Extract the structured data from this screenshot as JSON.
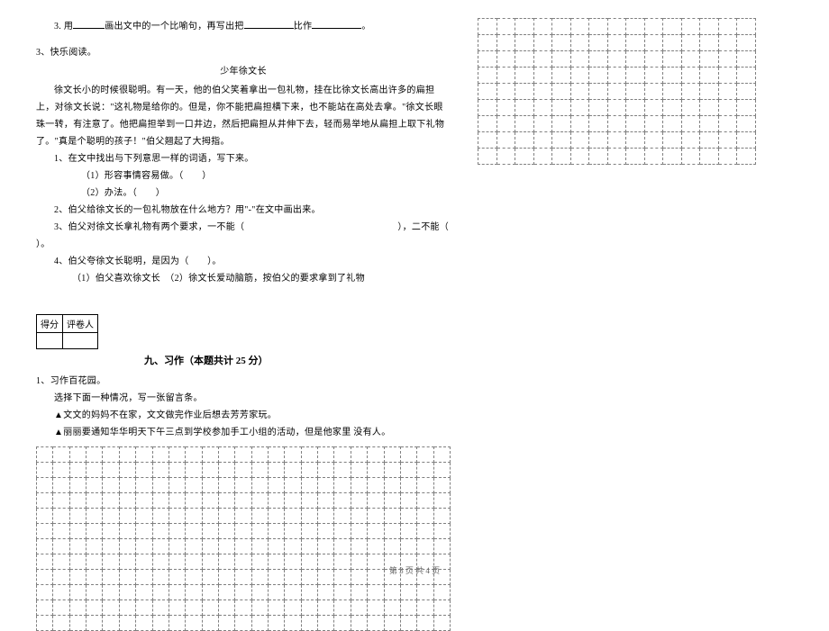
{
  "q3_sub3": {
    "prefix": "3. 用",
    "mid1": "画出文中的一个比喻句，再写出把",
    "mid2": "比作",
    "end": "。"
  },
  "q3_main": "3、快乐阅读。",
  "story": {
    "title": "少年徐文长",
    "p1": "徐文长小的时候很聪明。有一天，他的伯父笑着拿出一包礼物，挂在比徐文长高出许多的扁担上，对徐文长说：\"这礼物是给你的。但是，你不能把扁担横下来，也不能站在高处去拿。\"徐文长眼珠一转，有注意了。他把扁担举到一口井边，然后把扁担从井伸下去，轻而易举地从扁担上取下礼物了。\"真是个聪明的孩子！\"伯父翘起了大拇指。",
    "s1": "1、在文中找出与下列意思一样的词语，写下来。",
    "s1_1": "（1）形容事情容易做。（　　）",
    "s1_2": "（2）办法。（　　）",
    "s2": "2、伯父给徐文长的一包礼物放在什么地方？用\"-\"在文中画出来。",
    "s3a": "3、伯父对徐文长拿礼物有两个要求，一不能（",
    "s3b": "），二不能（",
    "s3c": "）。",
    "s4": "4、伯父夸徐文长聪明，是因为（　　）。",
    "s4_1": "（1）伯父喜欢徐文长　（2）徐文长爱动脑筋，按伯父的要求拿到了礼物"
  },
  "score_labels": {
    "c1": "得分",
    "c2": "评卷人"
  },
  "section9_title": "九、习作（本题共计 25 分）",
  "composition": {
    "l1": "1、习作百花园。",
    "l2": "选择下面一种情况，写一张留言条。",
    "l3": "▲文文的妈妈不在家，文文做完作业后想去芳芳家玩。",
    "l4": "▲丽丽要通知华华明天下午三点到学校参加手工小组的活动，但是他家里 没有人。"
  },
  "left_grid": {
    "rows": 12,
    "cols": 25
  },
  "right_grid": {
    "rows": 9,
    "cols": 15
  },
  "footer": "第 3 页 共 4 页"
}
